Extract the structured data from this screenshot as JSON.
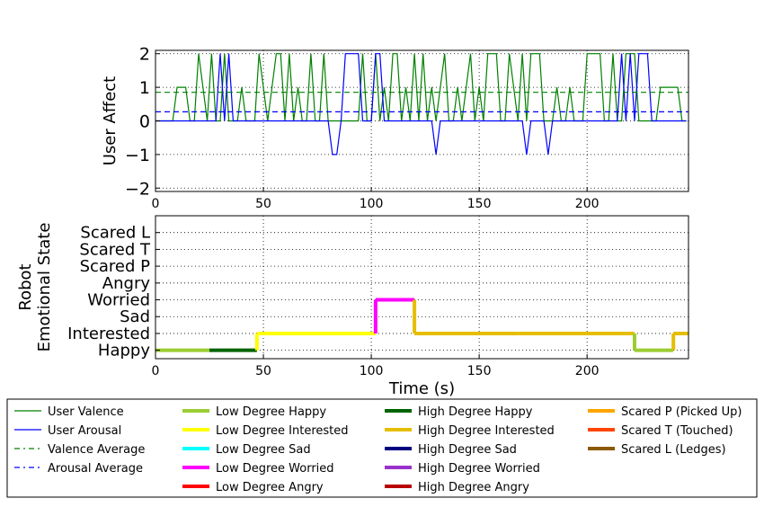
{
  "chart_data": [
    {
      "type": "line",
      "ylabel": "User Affect",
      "xlabel": "",
      "xlim": [
        0,
        247
      ],
      "ylim": [
        -2.1,
        2.1
      ],
      "x_ticks": [
        0,
        50,
        100,
        150,
        200
      ],
      "y_ticks": [
        -2,
        -1,
        0,
        1,
        2
      ],
      "y_tick_labels": [
        "−2",
        "−1",
        "0",
        "1",
        "2"
      ],
      "grid": true,
      "series": [
        {
          "name": "User Valence",
          "color": "#008000",
          "style": "solid",
          "x": [
            0,
            8,
            10,
            12,
            14,
            16,
            18,
            20,
            22,
            24,
            26,
            28,
            30,
            32,
            34,
            36,
            38,
            40,
            42,
            44,
            46,
            48,
            50,
            52,
            54,
            56,
            58,
            60,
            62,
            64,
            66,
            68,
            70,
            72,
            74,
            76,
            78,
            80,
            82,
            84,
            86,
            88,
            90,
            92,
            94,
            96,
            98,
            100,
            102,
            104,
            106,
            108,
            110,
            112,
            114,
            116,
            118,
            120,
            122,
            124,
            126,
            128,
            130,
            132,
            134,
            136,
            138,
            140,
            142,
            144,
            146,
            148,
            150,
            152,
            154,
            156,
            158,
            160,
            162,
            164,
            166,
            168,
            170,
            172,
            174,
            176,
            178,
            180,
            182,
            184,
            186,
            188,
            190,
            192,
            194,
            196,
            198,
            200,
            202,
            204,
            206,
            208,
            210,
            212,
            214,
            216,
            218,
            220,
            222,
            224,
            226,
            228,
            230,
            232,
            234,
            236,
            238,
            240,
            242,
            244,
            246
          ],
          "values": [
            0,
            0,
            1,
            1,
            1,
            0,
            0,
            2,
            1,
            0,
            2,
            0,
            0,
            2,
            0,
            0,
            0,
            1,
            0,
            0,
            0,
            2,
            1,
            0,
            1,
            2,
            2,
            0,
            2,
            0,
            1,
            0,
            0,
            2,
            0,
            0,
            2,
            0,
            0,
            0,
            0,
            0,
            0,
            0,
            0,
            2,
            0,
            0,
            2,
            0,
            1,
            0,
            2,
            2,
            0,
            1,
            0,
            2,
            0,
            2,
            0,
            1,
            0,
            1,
            2,
            0,
            0,
            1,
            0,
            1,
            2,
            0,
            1,
            0,
            2,
            2,
            2,
            0,
            0,
            2,
            1,
            0,
            2,
            0,
            2,
            2,
            2,
            0,
            0,
            0,
            1,
            0,
            0,
            1,
            0,
            0,
            0,
            2,
            2,
            2,
            2,
            0,
            0,
            2,
            0,
            0,
            2,
            2,
            2,
            0,
            0,
            0,
            0,
            0,
            1,
            1,
            1,
            1,
            1,
            0,
            0
          ]
        },
        {
          "name": "User Arousal",
          "color": "#0000ff",
          "style": "solid",
          "x": [
            0,
            20,
            22,
            24,
            26,
            28,
            30,
            32,
            34,
            36,
            38,
            40,
            42,
            44,
            46,
            48,
            50,
            52,
            54,
            56,
            58,
            60,
            62,
            64,
            66,
            68,
            70,
            72,
            74,
            76,
            78,
            80,
            82,
            84,
            86,
            88,
            90,
            92,
            94,
            96,
            98,
            100,
            102,
            104,
            106,
            108,
            110,
            112,
            114,
            116,
            118,
            120,
            122,
            124,
            126,
            128,
            130,
            132,
            134,
            136,
            138,
            140,
            142,
            144,
            146,
            148,
            150,
            152,
            154,
            156,
            158,
            160,
            162,
            164,
            166,
            168,
            170,
            172,
            174,
            176,
            178,
            180,
            182,
            184,
            186,
            188,
            190,
            192,
            194,
            196,
            198,
            200,
            202,
            204,
            206,
            208,
            210,
            212,
            214,
            216,
            218,
            220,
            222,
            224,
            226,
            228,
            230,
            232,
            234,
            236,
            238,
            240,
            242,
            244,
            246
          ],
          "values": [
            0,
            0,
            0,
            0,
            0,
            0,
            2,
            0,
            2,
            0,
            0,
            0,
            0,
            0,
            0,
            0,
            0,
            0,
            0,
            0,
            0,
            0,
            0,
            0,
            0,
            0,
            0,
            0,
            0,
            0,
            0,
            0,
            -1,
            -1,
            0,
            2,
            2,
            2,
            2,
            0,
            0,
            0,
            2,
            2,
            0,
            0,
            0,
            0,
            0,
            0,
            0,
            0,
            0,
            0,
            0,
            0,
            -1,
            0,
            0,
            0,
            0,
            0,
            0,
            0,
            0,
            0,
            0,
            0,
            0,
            0,
            0,
            0,
            0,
            0,
            0,
            0,
            0,
            -1,
            0,
            0,
            0,
            0,
            -1,
            0,
            0,
            0,
            0,
            0,
            0,
            0,
            0,
            0,
            0,
            0,
            0,
            0,
            0,
            0,
            0,
            2,
            0,
            2,
            0,
            2,
            2,
            2,
            0,
            0,
            0,
            0,
            0,
            0,
            0,
            0,
            0
          ]
        },
        {
          "name": "Valence Average",
          "color": "#008000",
          "style": "dashed",
          "x": [
            0,
            247
          ],
          "values": [
            0.85,
            0.85
          ]
        },
        {
          "name": "Arousal Average",
          "color": "#0000ff",
          "style": "dashed",
          "x": [
            0,
            247
          ],
          "values": [
            0.27,
            0.27
          ]
        }
      ]
    },
    {
      "type": "line",
      "ylabel": "Robot Emotional State",
      "ylabel_lines": [
        "Robot",
        "Emotional State"
      ],
      "xlabel": "Time (s)",
      "xlim": [
        0,
        247
      ],
      "x_ticks": [
        0,
        50,
        100,
        150,
        200
      ],
      "categories": [
        "Happy",
        "Interested",
        "Sad",
        "Worried",
        "Angry",
        "Scared P",
        "Scared T",
        "Scared L"
      ],
      "grid": true,
      "segments": [
        {
          "start": 0,
          "end": 25,
          "state": "Happy",
          "series": "Low Degree Happy"
        },
        {
          "start": 25,
          "end": 47,
          "state": "Happy",
          "series": "High Degree Happy"
        },
        {
          "start": 47,
          "end": 102,
          "state": "Interested",
          "series": "Low Degree Interested"
        },
        {
          "start": 102,
          "end": 120,
          "state": "Worried",
          "series": "Low Degree Worried"
        },
        {
          "start": 120,
          "end": 168,
          "state": "Interested",
          "series": "High Degree Interested"
        },
        {
          "start": 168,
          "end": 222,
          "state": "Interested",
          "series": "High Degree Interested"
        },
        {
          "start": 222,
          "end": 240,
          "state": "Happy",
          "series": "Low Degree Happy"
        },
        {
          "start": 240,
          "end": 247,
          "state": "Interested",
          "series": "High Degree Interested"
        }
      ]
    }
  ],
  "legend": {
    "placement": "bottom",
    "columns": [
      [
        {
          "label": "User Valence",
          "color": "#008000",
          "style": "solid"
        },
        {
          "label": "User Arousal",
          "color": "#0000ff",
          "style": "solid"
        },
        {
          "label": "Valence Average",
          "color": "#008000",
          "style": "dashdot"
        },
        {
          "label": "Arousal Average",
          "color": "#0000ff",
          "style": "dashdot"
        }
      ],
      [
        {
          "label": "Low Degree Happy",
          "color": "#9acd32",
          "style": "thick"
        },
        {
          "label": "Low Degree Interested",
          "color": "#ffff00",
          "style": "thick"
        },
        {
          "label": "Low Degree Sad",
          "color": "#00ffff",
          "style": "thick"
        },
        {
          "label": "Low Degree Worried",
          "color": "#ff00ff",
          "style": "thick"
        },
        {
          "label": "Low Degree Angry",
          "color": "#ff0000",
          "style": "thick"
        }
      ],
      [
        {
          "label": "High Degree Happy",
          "color": "#006400",
          "style": "thick"
        },
        {
          "label": "High Degree Interested",
          "color": "#e6be00",
          "style": "thick"
        },
        {
          "label": "High Degree Sad",
          "color": "#000080",
          "style": "thick"
        },
        {
          "label": "High Degree Worried",
          "color": "#9932cc",
          "style": "thick"
        },
        {
          "label": "High Degree Angry",
          "color": "#b80000",
          "style": "thick"
        }
      ],
      [
        {
          "label": "Scared P (Picked Up)",
          "color": "#ffa500",
          "style": "thick"
        },
        {
          "label": "Scared T (Touched)",
          "color": "#ff4500",
          "style": "thick"
        },
        {
          "label": "Scared L (Ledges)",
          "color": "#8b5a00",
          "style": "thick"
        }
      ]
    ]
  }
}
